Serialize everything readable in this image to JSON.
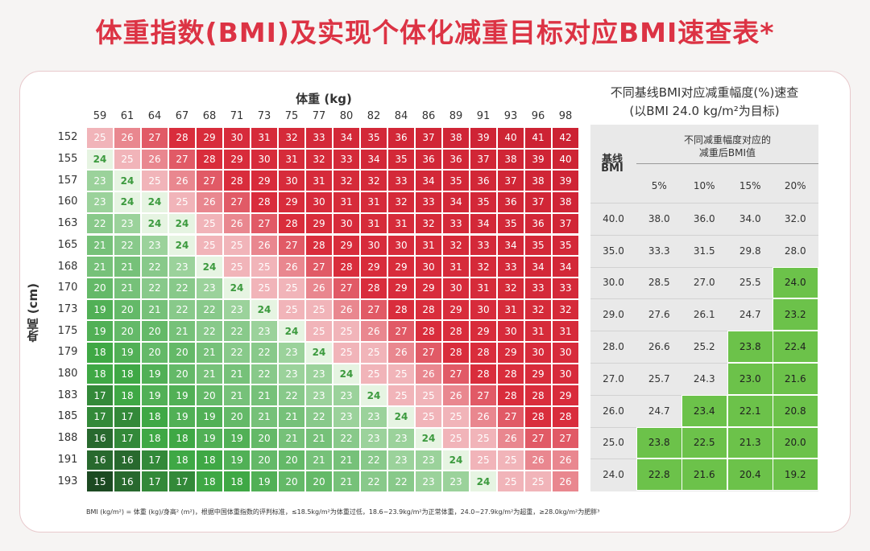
{
  "title": "体重指数(BMI)及实现个体化减重目标对应BMI速查表*",
  "chart_data": [
    {
      "type": "heatmap",
      "xlabel": "体重 (kg)",
      "ylabel": "身高 (cm)",
      "x": [
        "59",
        "61",
        "64",
        "67",
        "68",
        "71",
        "73",
        "75",
        "77",
        "80",
        "82",
        "84",
        "86",
        "89",
        "91",
        "93",
        "96",
        "98"
      ],
      "y": [
        "152",
        "155",
        "157",
        "160",
        "163",
        "165",
        "168",
        "170",
        "173",
        "175",
        "179",
        "180",
        "183",
        "185",
        "188",
        "191",
        "193"
      ],
      "values": [
        [
          25,
          26,
          27,
          28,
          29,
          30,
          31,
          32,
          33,
          34,
          35,
          36,
          37,
          38,
          39,
          40,
          41,
          42
        ],
        [
          24,
          25,
          26,
          27,
          28,
          29,
          30,
          31,
          32,
          33,
          34,
          35,
          36,
          36,
          37,
          38,
          39,
          40
        ],
        [
          23,
          24,
          25,
          26,
          27,
          28,
          29,
          30,
          31,
          32,
          32,
          33,
          34,
          35,
          36,
          37,
          38,
          39
        ],
        [
          23,
          24,
          24,
          25,
          26,
          27,
          28,
          29,
          30,
          31,
          31,
          32,
          33,
          34,
          35,
          36,
          37,
          38
        ],
        [
          22,
          23,
          24,
          24,
          25,
          26,
          27,
          28,
          29,
          30,
          31,
          31,
          32,
          33,
          34,
          35,
          36,
          37
        ],
        [
          21,
          22,
          23,
          24,
          25,
          25,
          26,
          27,
          28,
          29,
          30,
          30,
          31,
          32,
          33,
          34,
          35,
          35
        ],
        [
          21,
          21,
          22,
          23,
          24,
          25,
          25,
          26,
          27,
          28,
          29,
          29,
          30,
          31,
          32,
          33,
          34,
          34
        ],
        [
          20,
          21,
          22,
          22,
          23,
          24,
          25,
          25,
          26,
          27,
          28,
          29,
          29,
          30,
          31,
          32,
          33,
          33
        ],
        [
          19,
          20,
          21,
          22,
          22,
          23,
          24,
          25,
          25,
          26,
          27,
          28,
          28,
          29,
          30,
          31,
          32,
          32
        ],
        [
          19,
          20,
          20,
          21,
          22,
          22,
          23,
          24,
          25,
          25,
          26,
          27,
          28,
          28,
          29,
          30,
          31,
          31
        ],
        [
          18,
          19,
          20,
          20,
          21,
          22,
          22,
          23,
          24,
          25,
          25,
          26,
          27,
          28,
          28,
          29,
          30,
          30
        ],
        [
          18,
          18,
          19,
          20,
          21,
          21,
          22,
          23,
          23,
          24,
          25,
          25,
          26,
          27,
          28,
          28,
          29,
          30
        ],
        [
          17,
          18,
          19,
          19,
          20,
          21,
          21,
          22,
          23,
          23,
          24,
          25,
          25,
          26,
          27,
          28,
          28,
          29
        ],
        [
          17,
          17,
          18,
          19,
          19,
          20,
          21,
          21,
          22,
          23,
          23,
          24,
          25,
          25,
          26,
          27,
          28,
          28
        ],
        [
          16,
          17,
          18,
          18,
          19,
          19,
          20,
          21,
          21,
          22,
          23,
          23,
          24,
          25,
          25,
          26,
          27,
          27
        ],
        [
          16,
          16,
          17,
          18,
          18,
          19,
          20,
          20,
          21,
          21,
          22,
          23,
          23,
          24,
          25,
          25,
          26,
          26
        ],
        [
          15,
          16,
          17,
          17,
          18,
          18,
          19,
          20,
          20,
          21,
          22,
          22,
          23,
          23,
          24,
          25,
          25,
          26
        ]
      ],
      "color_scale": {
        "dark_green": "#1c4a22",
        "green": "#3fa845",
        "pale_green": "#e6f4e2",
        "pale_red": "#f1b4b9",
        "red": "#d92d3c",
        "deep_red": "#cc2233"
      }
    },
    {
      "type": "table",
      "title_line1": "不同基线BMI对应减重幅度(%)速查",
      "title_line2": "(以BMI 24.0 kg/m²为目标)",
      "row_header": "基线BMI",
      "row_header_line1": "基线",
      "row_header_line2": "BMI",
      "column_group_header": "不同减重幅度对应的减重后BMI值",
      "column_group_line1": "不同减重幅度对应的",
      "column_group_line2": "减重后BMI值",
      "columns": [
        "5%",
        "10%",
        "15%",
        "20%"
      ],
      "rows": [
        {
          "baseline": "40.0",
          "values": [
            "38.0",
            "36.0",
            "34.0",
            "32.0"
          ]
        },
        {
          "baseline": "35.0",
          "values": [
            "33.3",
            "31.5",
            "29.8",
            "28.0"
          ]
        },
        {
          "baseline": "30.0",
          "values": [
            "28.5",
            "27.0",
            "25.5",
            "24.0"
          ]
        },
        {
          "baseline": "29.0",
          "values": [
            "27.6",
            "26.1",
            "24.7",
            "23.2"
          ]
        },
        {
          "baseline": "28.0",
          "values": [
            "26.6",
            "25.2",
            "23.8",
            "22.4"
          ]
        },
        {
          "baseline": "27.0",
          "values": [
            "25.7",
            "24.3",
            "23.0",
            "21.6"
          ]
        },
        {
          "baseline": "26.0",
          "values": [
            "24.7",
            "23.4",
            "22.1",
            "20.8"
          ]
        },
        {
          "baseline": "25.0",
          "values": [
            "23.8",
            "22.5",
            "21.3",
            "20.0"
          ]
        },
        {
          "baseline": "24.0",
          "values": [
            "22.8",
            "21.6",
            "20.4",
            "19.2"
          ]
        }
      ],
      "highlight_threshold": 24.0,
      "highlight_color": "#6cc24a"
    }
  ],
  "footnote": "BMI (kg/m²) = 体重 (kg)/身高² (m²)，根据中国体重指数的评判标准，≤18.5kg/m²为体重过低，18.6~23.9kg/m²为正常体重，24.0~27.9kg/m²为超重，≥28.0kg/m²为肥胖³"
}
